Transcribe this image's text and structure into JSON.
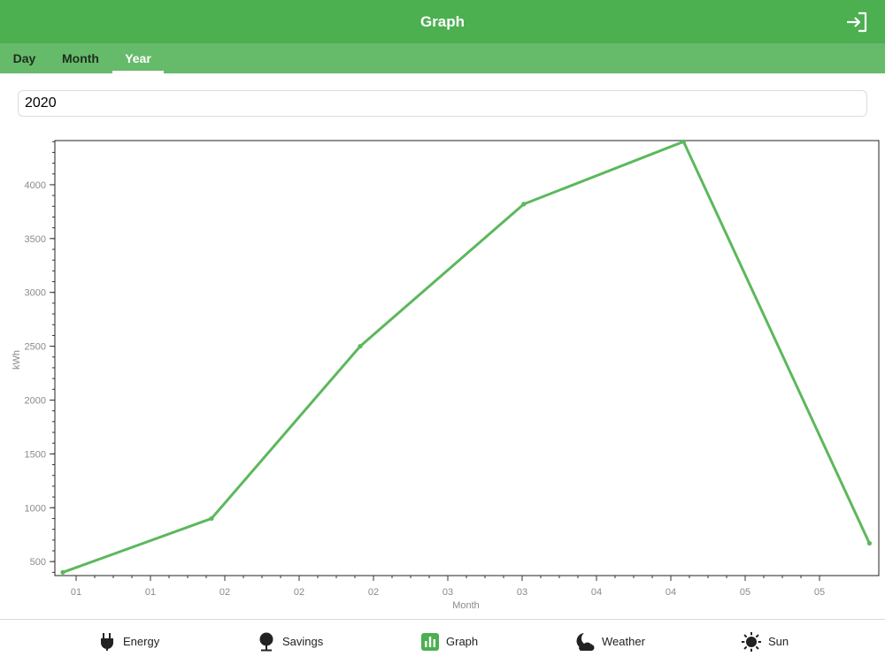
{
  "header": {
    "title": "Graph",
    "logout_icon": "logout-icon"
  },
  "tabs": [
    {
      "label": "Day",
      "active": false
    },
    {
      "label": "Month",
      "active": false
    },
    {
      "label": "Year",
      "active": true
    }
  ],
  "year_input": {
    "value": "2020"
  },
  "chart_data": {
    "type": "line",
    "title": "",
    "xlabel": "Month",
    "ylabel": "kWh",
    "x_tick_labels": [
      "01",
      "01",
      "02",
      "02",
      "02",
      "03",
      "03",
      "04",
      "04",
      "05",
      "05"
    ],
    "y_ticks": [
      500,
      1000,
      1500,
      2000,
      2500,
      3000,
      3500,
      4000
    ],
    "ylim": [
      370,
      4410
    ],
    "series": [
      {
        "color": "#5cb85c",
        "x_positions": [
          0,
          2.0,
          4.0,
          6.2,
          8.35,
          10.85
        ],
        "values": [
          400,
          900,
          2500,
          3820,
          4400,
          670
        ]
      }
    ],
    "grid": false,
    "legend": "none"
  },
  "tabbar": {
    "items": [
      {
        "label": "Energy",
        "icon": "plug-icon",
        "active": false
      },
      {
        "label": "Savings",
        "icon": "tree-icon",
        "active": false
      },
      {
        "label": "Graph",
        "icon": "bar-chart-icon",
        "active": true
      },
      {
        "label": "Weather",
        "icon": "moon-cloud-icon",
        "active": false
      },
      {
        "label": "Sun",
        "icon": "sun-icon",
        "active": false
      }
    ]
  },
  "colors": {
    "primary": "#4caf50",
    "tab_bar": "#66bb6a",
    "line": "#5cb85c"
  }
}
